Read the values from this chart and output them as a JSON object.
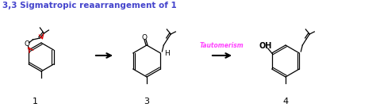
{
  "title": "3,3 Sigmatropic reaarrangement of 1",
  "title_color": "#4444cc",
  "title_fontsize": 7.5,
  "bg_color": "#ffffff",
  "tautomerism_color": "#ff44ff",
  "tautomerism_label": "Tautomerism",
  "red_color": "#dd0000",
  "label_1": "1",
  "label_3": "3",
  "label_4": "4",
  "figw": 4.74,
  "figh": 1.4,
  "dpi": 100
}
